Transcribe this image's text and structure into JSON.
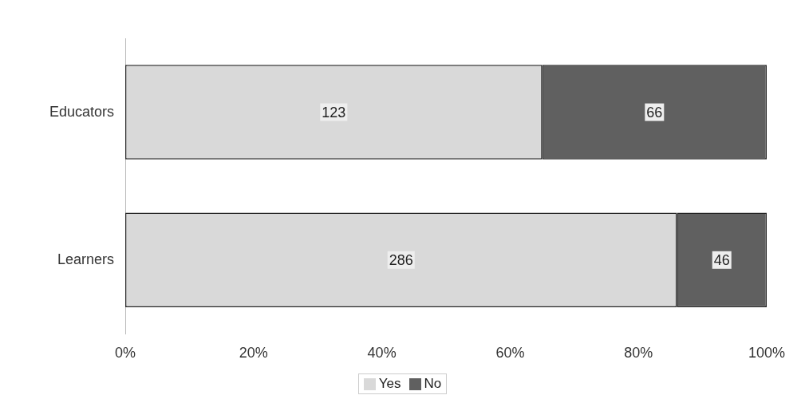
{
  "chart_data": {
    "type": "bar",
    "orientation": "horizontal",
    "stacked": true,
    "categories": [
      "Educators",
      "Learners"
    ],
    "series": [
      {
        "name": "Yes",
        "color": "#d9d9d9",
        "values": [
          65,
          86
        ]
      },
      {
        "name": "No",
        "color": "#606060",
        "values": [
          35,
          14
        ]
      }
    ],
    "annotations": [
      {
        "text": "123",
        "x": 32.5,
        "y": "Educators"
      },
      {
        "text": "66",
        "x": 82.5,
        "y": "Educators"
      },
      {
        "text": "286",
        "x": 43,
        "y": "Learners"
      },
      {
        "text": "46",
        "x": 93,
        "y": "Learners"
      }
    ],
    "xlim": [
      0,
      100
    ],
    "xticks": [
      {
        "value": 0,
        "label": "0%"
      },
      {
        "value": 20,
        "label": "20%"
      },
      {
        "value": 40,
        "label": "40%"
      },
      {
        "value": 60,
        "label": "60%"
      },
      {
        "value": 80,
        "label": "80%"
      },
      {
        "value": 100,
        "label": "100%"
      }
    ],
    "grid": false,
    "legend": "bottom"
  }
}
